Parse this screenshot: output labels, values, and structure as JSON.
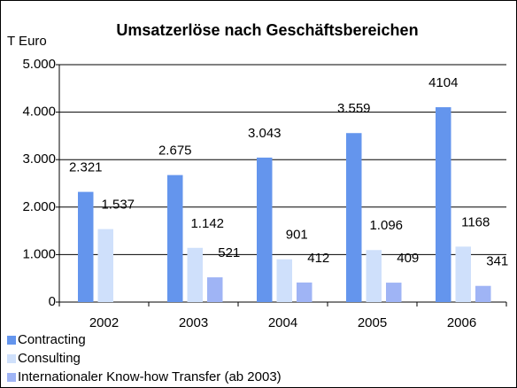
{
  "chart_data": {
    "type": "bar",
    "title": "Umsatzerlöse nach Geschäftsbereichen",
    "y_label": "T Euro",
    "categories": [
      "2002",
      "2003",
      "2004",
      "2005",
      "2006"
    ],
    "series": [
      {
        "name": "Contracting",
        "color": "#6495ed",
        "values": [
          2321,
          2675,
          3043,
          3559,
          4104
        ],
        "value_labels": [
          "2.321",
          "2.675",
          "3.043",
          "3.559",
          "4104"
        ]
      },
      {
        "name": "Consulting",
        "color": "#cfe0fb",
        "values": [
          1537,
          1142,
          901,
          1096,
          1168
        ],
        "value_labels": [
          "1.537",
          "1.142",
          "901",
          "1.096",
          "1168"
        ]
      },
      {
        "name": "Internationaler Know-how Transfer (ab 2003)",
        "color": "#9fb4f5",
        "values": [
          null,
          521,
          412,
          409,
          341
        ],
        "value_labels": [
          null,
          "521",
          "412",
          "409",
          "341"
        ]
      }
    ],
    "ylim": [
      0,
      5000
    ],
    "yticks": [
      0,
      {
        "value": 1000,
        "label": "1.000"
      },
      {
        "value": 2000,
        "label": "2.000"
      },
      {
        "value": 3000,
        "label": "3.000"
      },
      {
        "value": 4000,
        "label": "4.000"
      },
      {
        "value": 5000,
        "label": "5.000"
      }
    ],
    "grid": true,
    "legend": "bottom-left"
  }
}
